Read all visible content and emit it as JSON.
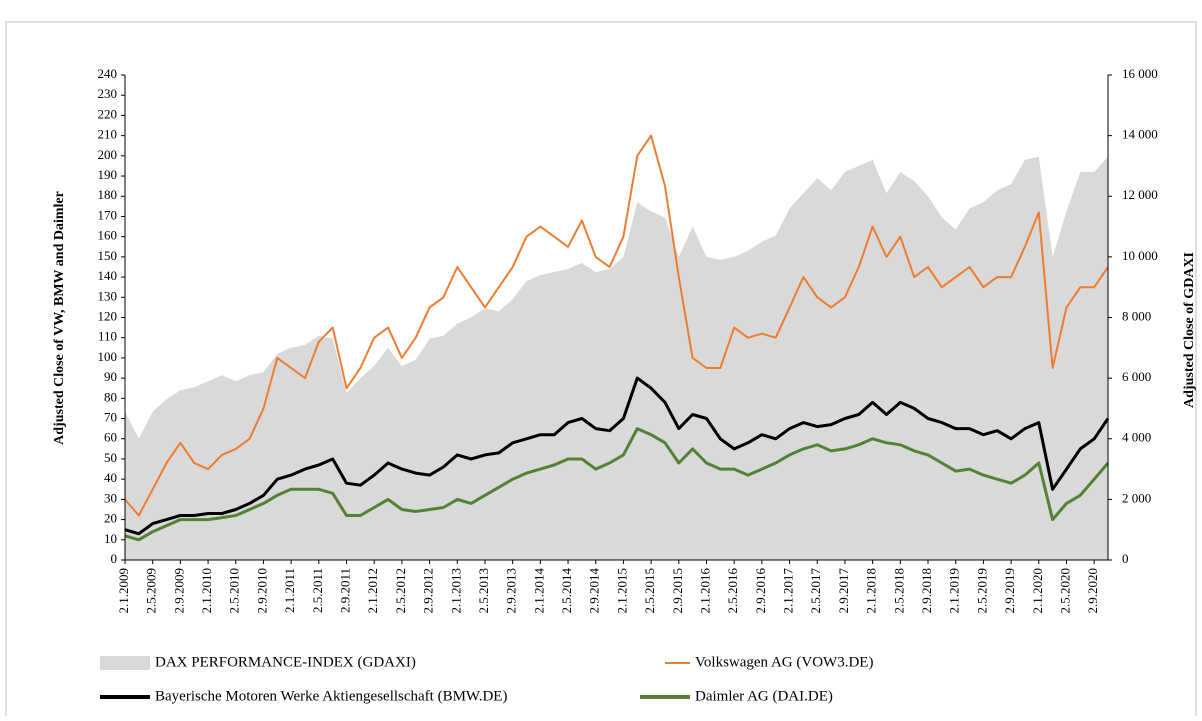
{
  "chart_data": {
    "type": "line",
    "y_label": "Adjusted Close of VW, BMW and Daimler",
    "y2_label": "Adjusted Close of GDAXI",
    "categories": [
      "2.1.2009",
      null,
      "2.5.2009",
      null,
      "2.9.2009",
      null,
      "2.1.2010",
      null,
      "2.5.2010",
      null,
      "2.9.2010",
      null,
      "2.1.2011",
      null,
      "2.5.2011",
      null,
      "2.9.2011",
      null,
      "2.1.2012",
      null,
      "2.5.2012",
      null,
      "2.9.2012",
      null,
      "2.1.2013",
      null,
      "2.5.2013",
      null,
      "2.9.2013",
      null,
      "2.1.2014",
      null,
      "2.5.2014",
      null,
      "2.9.2014",
      null,
      "2.1.2015",
      null,
      "2.5.2015",
      null,
      "2.9.2015",
      null,
      "2.1.2016",
      null,
      "2.5.2016",
      null,
      "2.9.2016",
      null,
      "2.1.2017",
      null,
      "2.5.2017",
      null,
      "2.9.2017",
      null,
      "2.1.2018",
      null,
      "2.5.2018",
      null,
      "2.9.2018",
      null,
      "2.1.2019",
      null,
      "2.5.2019",
      null,
      "2.9.2019",
      null,
      "2.1.2020",
      null,
      "2.5.2020",
      null,
      "2.9.2020",
      null
    ],
    "series": [
      {
        "name": "DAX PERFORMANCE-INDEX (GDAXI)",
        "color": "#d9d9d9",
        "style": "area",
        "axis": "y2",
        "values": [
          4900,
          4000,
          4900,
          5300,
          5600,
          5700,
          5900,
          6100,
          5900,
          6100,
          6200,
          6800,
          7000,
          7100,
          7400,
          7300,
          5500,
          6000,
          6400,
          7000,
          6400,
          6600,
          7300,
          7400,
          7800,
          8000,
          8300,
          8200,
          8600,
          9200,
          9400,
          9500,
          9600,
          9800,
          9500,
          9600,
          10000,
          11800,
          11500,
          11300,
          10000,
          11000,
          10000,
          9900,
          10000,
          10200,
          10500,
          10700,
          11600,
          12100,
          12600,
          12200,
          12800,
          13000,
          13200,
          12100,
          12800,
          12500,
          12000,
          11300,
          10900,
          11600,
          11800,
          12200,
          12400,
          13200,
          13300,
          10000,
          11500,
          12800,
          12800,
          13300
        ]
      },
      {
        "name": "Volkswagen AG (VOW3.DE)",
        "color": "#ed7d31",
        "style": "line",
        "values": [
          30,
          22,
          35,
          48,
          58,
          48,
          45,
          52,
          55,
          60,
          75,
          100,
          95,
          90,
          108,
          115,
          85,
          95,
          110,
          115,
          100,
          110,
          125,
          130,
          145,
          135,
          125,
          135,
          145,
          160,
          165,
          160,
          155,
          168,
          150,
          145,
          160,
          200,
          210,
          185,
          140,
          100,
          95,
          95,
          115,
          110,
          112,
          110,
          125,
          140,
          130,
          125,
          130,
          145,
          165,
          150,
          160,
          140,
          145,
          135,
          140,
          145,
          135,
          140,
          140,
          155,
          172,
          95,
          125,
          135,
          135,
          145
        ]
      },
      {
        "name": "Bayerische Motoren Werke Aktiengesellschaft (BMW.DE)",
        "color": "#000000",
        "style": "line",
        "values": [
          15,
          13,
          18,
          20,
          22,
          22,
          23,
          23,
          25,
          28,
          32,
          40,
          42,
          45,
          47,
          50,
          38,
          37,
          42,
          48,
          45,
          43,
          42,
          46,
          52,
          50,
          52,
          53,
          58,
          60,
          62,
          62,
          68,
          70,
          65,
          64,
          70,
          90,
          85,
          78,
          65,
          72,
          70,
          60,
          55,
          58,
          62,
          60,
          65,
          68,
          66,
          67,
          70,
          72,
          78,
          72,
          78,
          75,
          70,
          68,
          65,
          65,
          62,
          64,
          60,
          65,
          68,
          35,
          45,
          55,
          60,
          70
        ]
      },
      {
        "name": "Daimler AG (DAI.DE)",
        "color": "#548235",
        "style": "line",
        "values": [
          12,
          10,
          14,
          17,
          20,
          20,
          20,
          21,
          22,
          25,
          28,
          32,
          35,
          35,
          35,
          33,
          22,
          22,
          26,
          30,
          25,
          24,
          25,
          26,
          30,
          28,
          32,
          36,
          40,
          43,
          45,
          47,
          50,
          50,
          45,
          48,
          52,
          65,
          62,
          58,
          48,
          55,
          48,
          45,
          45,
          42,
          45,
          48,
          52,
          55,
          57,
          54,
          55,
          57,
          60,
          58,
          57,
          54,
          52,
          48,
          44,
          45,
          42,
          40,
          38,
          42,
          48,
          20,
          28,
          32,
          40,
          48
        ]
      }
    ],
    "ylim": [
      0,
      240
    ],
    "yticks": [
      0,
      10,
      20,
      30,
      40,
      50,
      60,
      70,
      80,
      90,
      100,
      110,
      120,
      130,
      140,
      150,
      160,
      170,
      180,
      190,
      200,
      210,
      220,
      230,
      240
    ],
    "y2lim": [
      0,
      16000
    ],
    "y2ticks": [
      0,
      {
        "value": 2000,
        "label": "2 000"
      },
      {
        "value": 4000,
        "label": "4 000"
      },
      {
        "value": 6000,
        "label": "6 000"
      },
      {
        "value": 8000,
        "label": "8 000"
      },
      {
        "value": 10000,
        "label": "10 000"
      },
      {
        "value": 12000,
        "label": "12 000"
      },
      {
        "value": 14000,
        "label": "14 000"
      },
      {
        "value": 16000,
        "label": "16 000"
      }
    ]
  }
}
